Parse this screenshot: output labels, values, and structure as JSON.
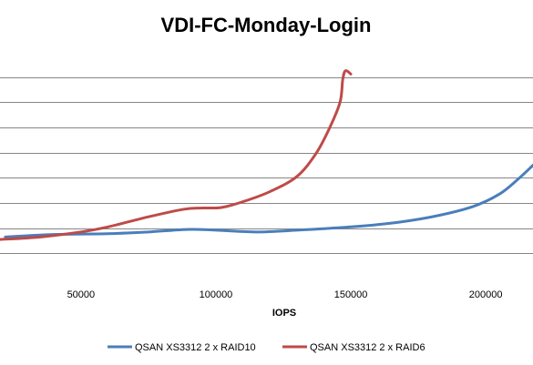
{
  "chart_data": {
    "type": "line",
    "title": "VDI-FC-Monday-Login",
    "xlabel": "IOPS",
    "ylabel": "",
    "xlim": [
      20000,
      217500
    ],
    "ylim": [
      0,
      9
    ],
    "x_ticks": [
      50000,
      100000,
      150000,
      200000
    ],
    "x_tick_labels": [
      "50000",
      "100000",
      "150000",
      "200000"
    ],
    "y_gridlines": [
      1,
      2,
      3,
      4,
      5,
      6,
      7,
      8
    ],
    "grid": true,
    "legend_position": "bottom",
    "series": [
      {
        "name": "QSAN XS3312 2 x RAID10",
        "color": "#4a7ebb",
        "points": [
          [
            22000,
            1.65
          ],
          [
            40000,
            1.75
          ],
          [
            60000,
            1.78
          ],
          [
            75000,
            1.85
          ],
          [
            90000,
            1.95
          ],
          [
            100000,
            1.92
          ],
          [
            115000,
            1.85
          ],
          [
            130000,
            1.92
          ],
          [
            150000,
            2.05
          ],
          [
            165000,
            2.2
          ],
          [
            180000,
            2.45
          ],
          [
            195000,
            2.85
          ],
          [
            205000,
            3.35
          ],
          [
            212000,
            3.95
          ],
          [
            217500,
            4.5
          ]
        ]
      },
      {
        "name": "QSAN XS3312 2 x RAID6",
        "color": "#be4b48",
        "points": [
          [
            20000,
            1.55
          ],
          [
            35000,
            1.65
          ],
          [
            50000,
            1.85
          ],
          [
            60000,
            2.05
          ],
          [
            75000,
            2.45
          ],
          [
            88000,
            2.75
          ],
          [
            95000,
            2.8
          ],
          [
            102000,
            2.82
          ],
          [
            110000,
            3.05
          ],
          [
            120000,
            3.45
          ],
          [
            130000,
            4.05
          ],
          [
            137000,
            4.95
          ],
          [
            142000,
            5.95
          ],
          [
            146000,
            7.0
          ],
          [
            147000,
            7.9
          ],
          [
            148000,
            8.25
          ],
          [
            150000,
            8.12
          ]
        ]
      }
    ]
  }
}
